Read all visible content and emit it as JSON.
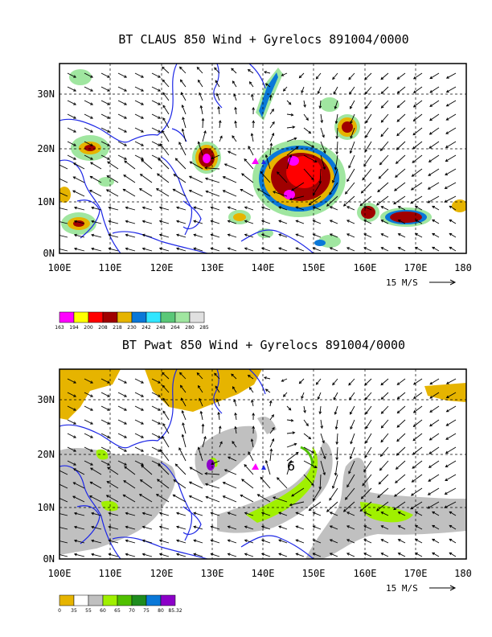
{
  "panels": [
    {
      "title": "BT CLAUS 850 Wind + Gyrelocs 891004/0000",
      "lat_labels": [
        "30N",
        "20N",
        "10N",
        "0N"
      ],
      "lon_labels": [
        "100E",
        "110E",
        "120E",
        "130E",
        "140E",
        "150E",
        "160E",
        "170E",
        "180"
      ],
      "scale_label": "15 M/S",
      "legend": {
        "labels": [
          "163",
          "194",
          "200",
          "208",
          "218",
          "230",
          "242",
          "248",
          "264",
          "280",
          "285"
        ],
        "colors": [
          "#ff00ff",
          "#ffff00",
          "#ff0000",
          "#a00000",
          "#e6b400",
          "#0a78d8",
          "#32e6ff",
          "#5ac878",
          "#a0e6a0",
          "#e0e0e0"
        ]
      }
    },
    {
      "title": "BT Pwat 850 Wind + Gyrelocs 891004/0000",
      "lat_labels": [
        "30N",
        "20N",
        "10N",
        "0N"
      ],
      "lon_labels": [
        "100E",
        "110E",
        "120E",
        "130E",
        "140E",
        "150E",
        "160E",
        "170E",
        "180"
      ],
      "scale_label": "15 M/S",
      "gyre_label": "6",
      "legend": {
        "labels": [
          "0",
          "35",
          "55",
          "60",
          "65",
          "70",
          "75",
          "80",
          "85.32"
        ],
        "colors": [
          "#e6b400",
          "#ffffff",
          "#c0c0c0",
          "#a0f000",
          "#50c000",
          "#1e8c1e",
          "#0a78d8",
          "#8c00c8"
        ]
      }
    }
  ],
  "colors": {
    "coast": "#1e28e6",
    "marker": "#ff00ff",
    "frame": "#000000"
  }
}
